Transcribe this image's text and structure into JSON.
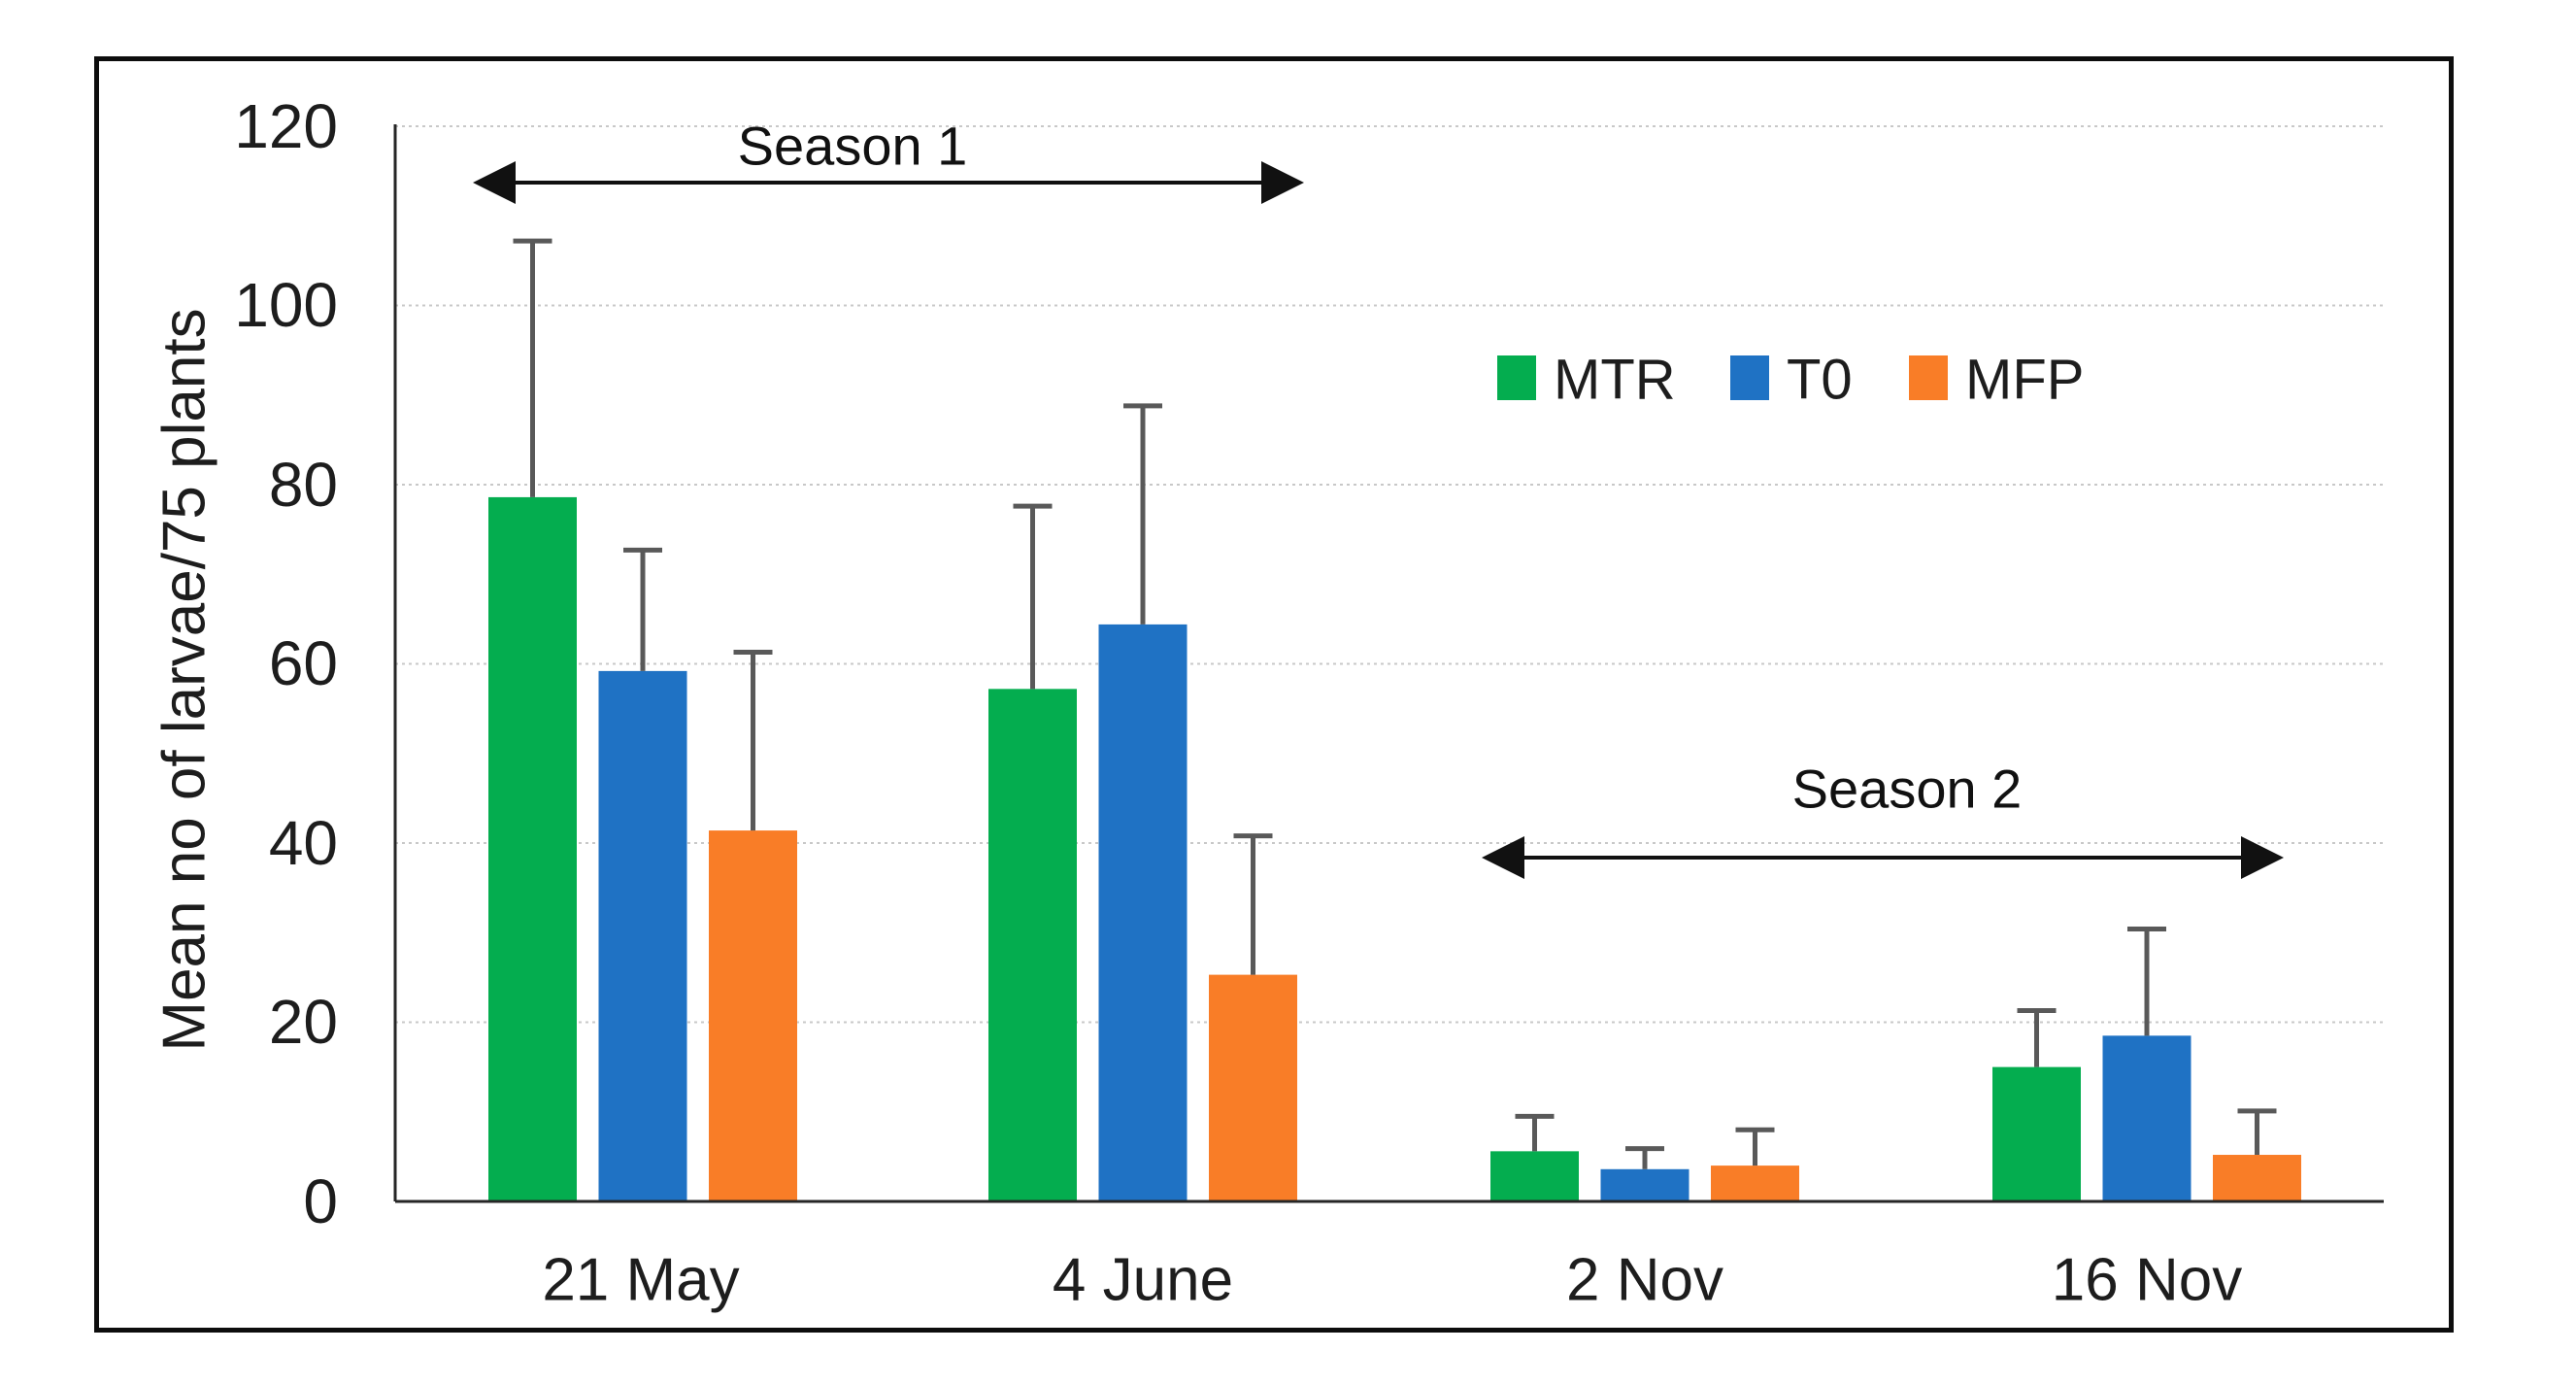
{
  "figure": {
    "background_color": "#ffffff",
    "border_color": "#0d0d0d"
  },
  "chart_data": {
    "type": "bar",
    "title": "",
    "xlabel": "",
    "ylabel": "Mean no of larvae/75 plants",
    "ylim": [
      0,
      120
    ],
    "yticks": [
      0,
      20,
      40,
      60,
      80,
      100,
      120
    ],
    "grid": "horizontal-dotted",
    "grid_color": "#c8c8c8",
    "axis_color": "#262626",
    "error_bar_color": "#595959",
    "legend_position": "inside-upper-right",
    "categories": [
      "21 May",
      "4 June",
      "2 Nov",
      "16 Nov"
    ],
    "series": [
      {
        "name": "MTR",
        "color": "#04AD4F",
        "values": [
          78.6,
          57.2,
          5.6,
          15.0
        ],
        "upper_errors": [
          28.6,
          20.4,
          3.9,
          6.3
        ]
      },
      {
        "name": "T0",
        "color": "#1F72C4",
        "values": [
          59.2,
          64.4,
          3.6,
          18.5
        ],
        "upper_errors": [
          13.5,
          24.4,
          2.3,
          11.9
        ]
      },
      {
        "name": "MFP",
        "color": "#F97D27",
        "values": [
          41.4,
          25.3,
          4.0,
          5.2
        ],
        "upper_errors": [
          19.9,
          15.5,
          4.0,
          4.9
        ]
      }
    ],
    "annotations": [
      {
        "label": "Season 1",
        "arrow": "double-headed",
        "span_categories": [
          "21 May",
          "4 June"
        ],
        "y_value": 113
      },
      {
        "label": "Season 2",
        "arrow": "double-headed",
        "span_categories": [
          "2 Nov",
          "16 Nov"
        ],
        "y_value": 38
      }
    ]
  }
}
